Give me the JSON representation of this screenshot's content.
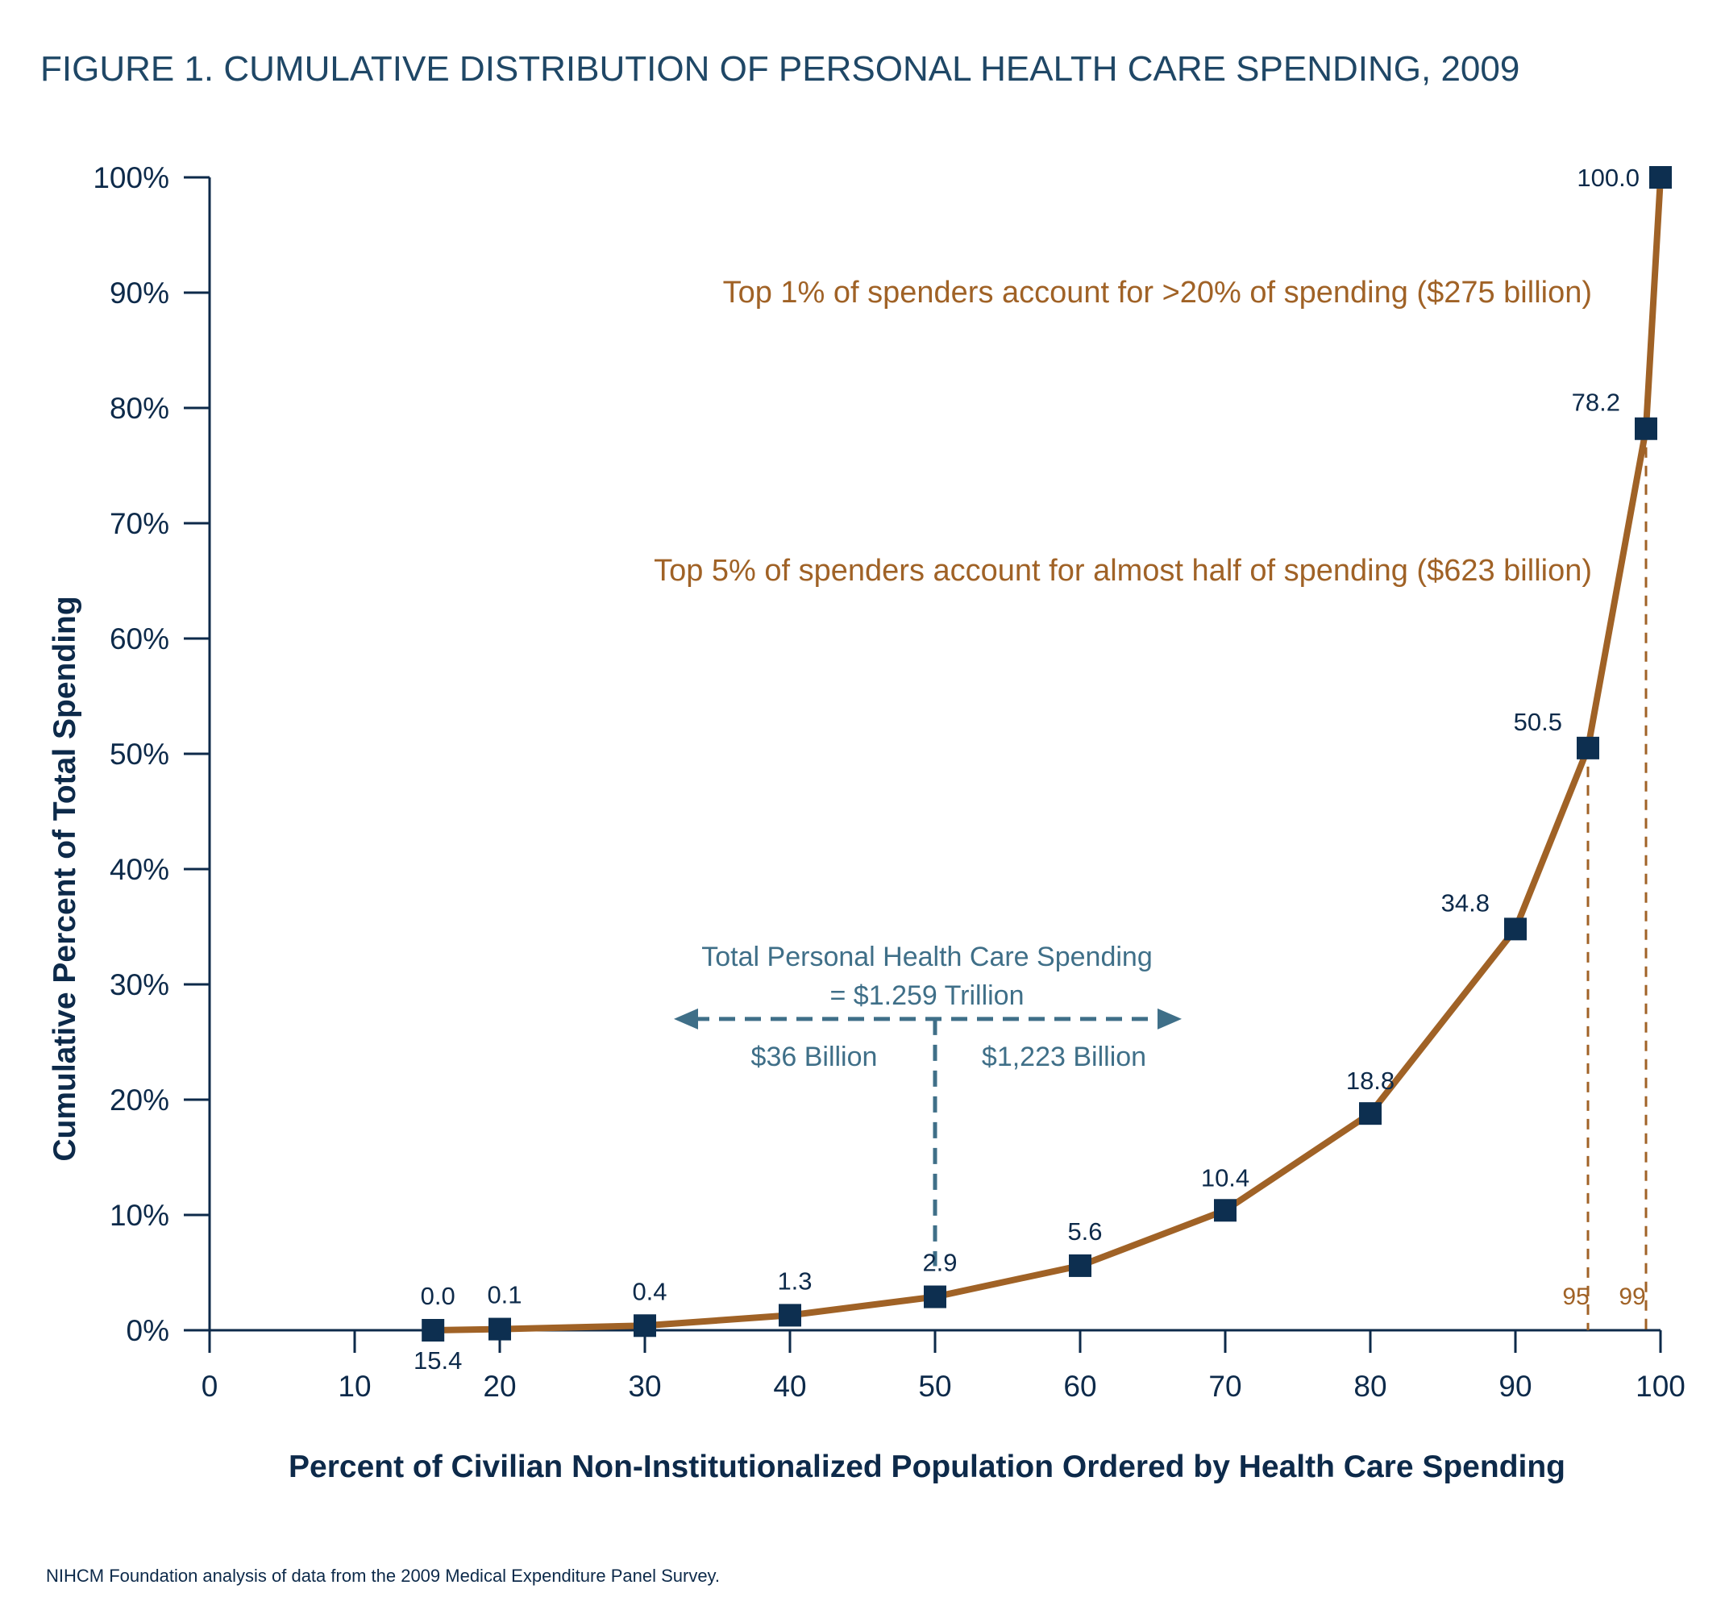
{
  "title": "FIGURE 1. CUMULATIVE DISTRIBUTION OF PERSONAL HEALTH CARE SPENDING, 2009",
  "source": "NIHCM Foundation analysis of data from the 2009 Medical Expenditure Panel Survey.",
  "colors": {
    "line": "#a06226",
    "marker": "#0d2f50",
    "axis": "#0d2a4a",
    "annotation_brown": "#a06226",
    "annotation_blue": "#3f6f88"
  },
  "annotations": {
    "top1": "Top 1% of spenders account for >20% of spending ($275 billion)",
    "top5": "Top 5% of spenders account for almost half of spending ($623 billion)",
    "total_line1": "Total Personal Health Care Spending",
    "total_line2": "= $1.259 Trillion",
    "left_split": "$36 Billion",
    "right_split": "$1,223 Billion",
    "x_start_label": "15.4",
    "marker95": "95",
    "marker99": "99"
  },
  "chart_data": {
    "type": "line",
    "title": "FIGURE 1. CUMULATIVE DISTRIBUTION OF PERSONAL HEALTH CARE SPENDING, 2009",
    "xlabel": "Percent of Civilian Non-Institutionalized Population Ordered by Health Care Spending",
    "ylabel": "Cumulative Percent of Total Spending",
    "xlim": [
      0,
      100
    ],
    "ylim": [
      0,
      100
    ],
    "x_ticks": [
      "0",
      "10",
      "20",
      "30",
      "40",
      "50",
      "60",
      "70",
      "80",
      "90",
      "100"
    ],
    "y_ticks": [
      "0%",
      "10%",
      "20%",
      "30%",
      "40%",
      "50%",
      "60%",
      "70%",
      "80%",
      "90%",
      "100%"
    ],
    "grid": false,
    "legend": "none",
    "series": [
      {
        "x": [
          15.4,
          20,
          30,
          40,
          50,
          60,
          70,
          80,
          90,
          95,
          99,
          100
        ],
        "y": [
          0.0,
          0.1,
          0.4,
          1.3,
          2.9,
          5.6,
          10.4,
          18.8,
          34.8,
          50.5,
          78.2,
          100.0
        ],
        "labels": [
          "0.0",
          "0.1",
          "0.4",
          "1.3",
          "2.9",
          "5.6",
          "10.4",
          "18.8",
          "34.8",
          "50.5",
          "78.2",
          "100.0"
        ]
      }
    ],
    "reference_lines": [
      {
        "x": 50,
        "style": "dashed",
        "label": ""
      },
      {
        "x": 95,
        "style": "dashed",
        "label": "95"
      },
      {
        "x": 99,
        "style": "dashed",
        "label": "99"
      }
    ],
    "split_arrow": {
      "y": 27,
      "x_from": 32,
      "x_to": 67
    }
  }
}
